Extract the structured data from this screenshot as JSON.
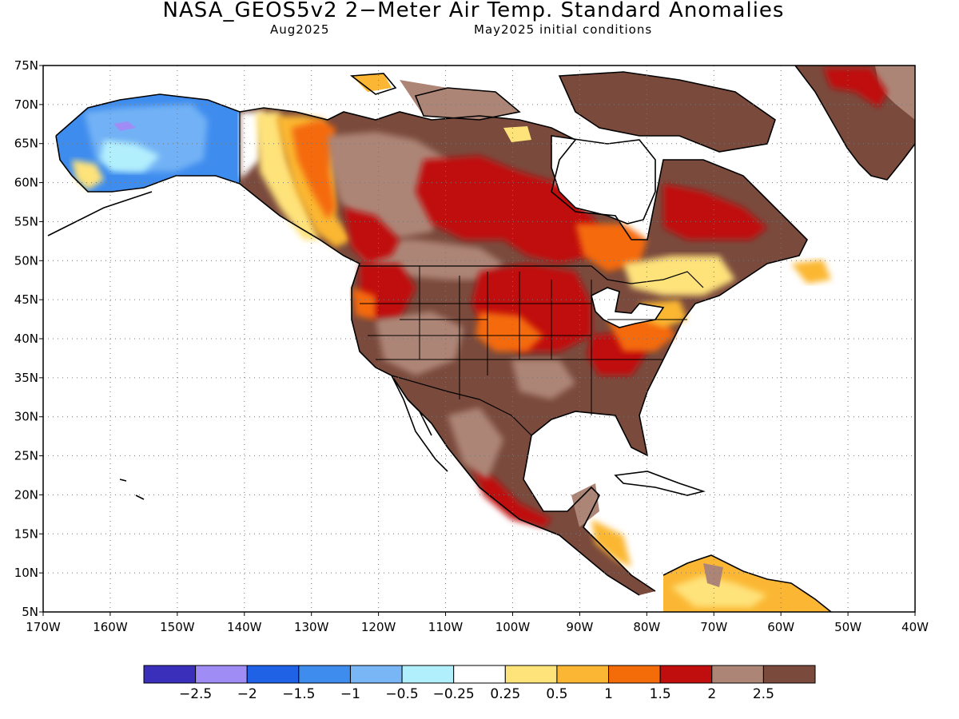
{
  "header": {
    "title": "NASA_GEOS5v2 2−Meter Air Temp. Standard Anomalies",
    "valid_month": "Aug2025",
    "init_conditions": "May2025 initial conditions"
  },
  "map": {
    "lat_labels": [
      "75N",
      "70N",
      "65N",
      "60N",
      "55N",
      "50N",
      "45N",
      "40N",
      "35N",
      "30N",
      "25N",
      "20N",
      "15N",
      "10N",
      "5N"
    ],
    "lon_labels": [
      "170W",
      "160W",
      "150W",
      "140W",
      "130W",
      "120W",
      "110W",
      "100W",
      "90W",
      "80W",
      "70W",
      "60W",
      "50W",
      "40W"
    ],
    "lon_range": [
      -170,
      -40
    ],
    "lat_range": [
      5,
      75
    ],
    "gridlines": "dotted"
  },
  "colorbar": {
    "colors": [
      "#3a2fbb",
      "#9f8cf5",
      "#1f62e6",
      "#3e8cee",
      "#78b6f6",
      "#b2effd",
      "#ffffff",
      "#fee27a",
      "#fbb733",
      "#f46b0a",
      "#c00d0d",
      "#ad8576",
      "#7a4a3d"
    ],
    "labels": [
      "−2.5",
      "−2",
      "−1.5",
      "−1",
      "−0.5",
      "−0.25",
      "0.25",
      "0.5",
      "1",
      "1.5",
      "2",
      "2.5"
    ]
  }
}
